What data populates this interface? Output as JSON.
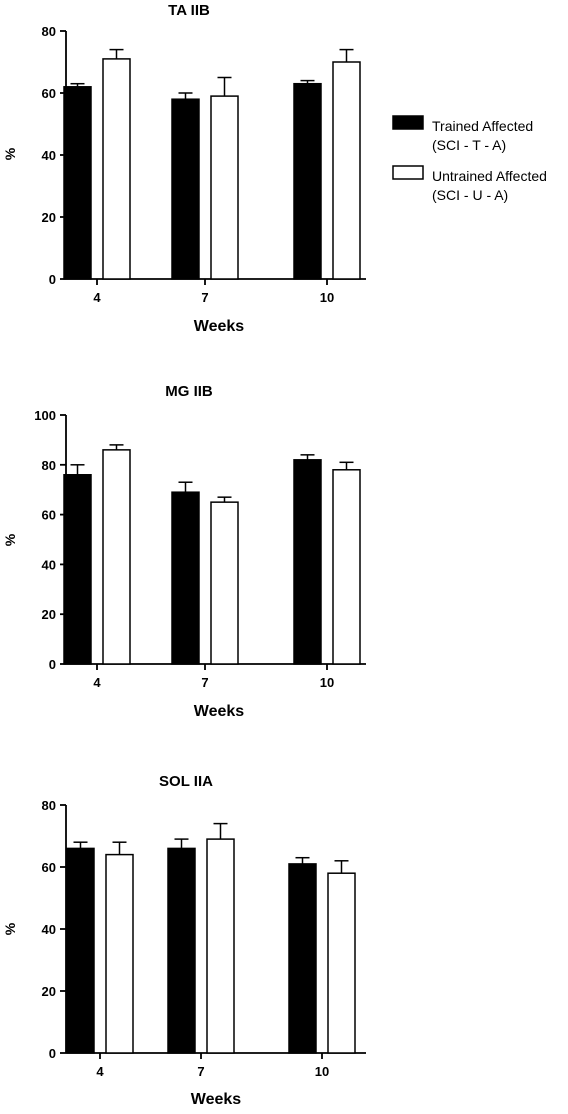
{
  "chart_data": [
    {
      "type": "bar",
      "title": "TA IIB",
      "xlabel": "Weeks",
      "ylabel": "%",
      "categories": [
        "4",
        "7",
        "10"
      ],
      "ylim": [
        0,
        80
      ],
      "yticks": [
        "0",
        "20",
        "40",
        "60",
        "80"
      ],
      "series": [
        {
          "name": "Trained Affected (SCI - T - A)",
          "values": [
            62,
            58,
            63
          ],
          "errors": [
            1,
            2,
            1
          ],
          "color": "#000000"
        },
        {
          "name": "Untrained Affected (SCI - U - A)",
          "values": [
            71,
            59,
            70
          ],
          "errors": [
            3,
            6,
            4
          ],
          "color": "#ffffff"
        }
      ]
    },
    {
      "type": "bar",
      "title": "MG IIB",
      "xlabel": "Weeks",
      "ylabel": "%",
      "categories": [
        "4",
        "7",
        "10"
      ],
      "ylim": [
        0,
        100
      ],
      "yticks": [
        "0",
        "20",
        "40",
        "60",
        "80",
        "100"
      ],
      "series": [
        {
          "name": "Trained Affected (SCI - T - A)",
          "values": [
            76,
            69,
            82
          ],
          "errors": [
            4,
            4,
            2
          ],
          "color": "#000000"
        },
        {
          "name": "Untrained Affected (SCI - U - A)",
          "values": [
            86,
            65,
            78
          ],
          "errors": [
            2,
            2,
            3
          ],
          "color": "#ffffff"
        }
      ]
    },
    {
      "type": "bar",
      "title": "SOL IIA",
      "xlabel": "Weeks",
      "ylabel": "%",
      "categories": [
        "4",
        "7",
        "10"
      ],
      "ylim": [
        0,
        80
      ],
      "yticks": [
        "0",
        "20",
        "40",
        "60",
        "80"
      ],
      "series": [
        {
          "name": "Trained Affected (SCI - T - A)",
          "values": [
            66,
            66,
            61
          ],
          "errors": [
            2,
            3,
            2
          ],
          "color": "#000000"
        },
        {
          "name": "Untrained Affected (SCI - U - A)",
          "values": [
            64,
            69,
            58
          ],
          "errors": [
            4,
            5,
            4
          ],
          "color": "#ffffff"
        }
      ]
    }
  ],
  "legend": {
    "placement": "right",
    "items": [
      {
        "line1": "Trained Affected",
        "line2": "(SCI - T - A)",
        "fill": "#000000"
      },
      {
        "line1": "Untrained Affected",
        "line2": "(SCI - U - A)",
        "fill": "#ffffff"
      }
    ]
  }
}
